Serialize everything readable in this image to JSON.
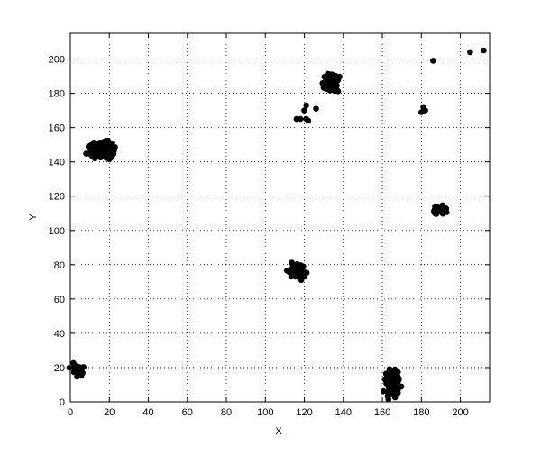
{
  "chart_data": {
    "type": "scatter",
    "title": "",
    "xlabel": "X",
    "ylabel": "Y",
    "xlim": [
      0,
      215
    ],
    "ylim": [
      0,
      215
    ],
    "xticks": [
      0,
      20,
      40,
      60,
      80,
      100,
      120,
      140,
      160,
      180,
      200
    ],
    "yticks": [
      0,
      20,
      40,
      60,
      80,
      100,
      120,
      140,
      160,
      180,
      200
    ],
    "grid": true,
    "marker_color": "#000000",
    "clusters": [
      {
        "center": [
          4,
          18
        ],
        "spread": [
          2.5,
          3
        ],
        "count": 35
      },
      {
        "center": [
          16,
          147
        ],
        "spread": [
          4.5,
          3.2
        ],
        "count": 150
      },
      {
        "center": [
          117,
          76
        ],
        "spread": [
          3.5,
          3
        ],
        "count": 45
      },
      {
        "center": [
          133,
          186
        ],
        "spread": [
          3,
          3.5
        ],
        "count": 90
      },
      {
        "center": [
          165,
          11
        ],
        "spread": [
          2.8,
          6
        ],
        "count": 110
      },
      {
        "center": [
          189,
          112
        ],
        "spread": [
          2.5,
          2
        ],
        "count": 45
      }
    ],
    "points": [
      {
        "x": 116,
        "y": 165
      },
      {
        "x": 118,
        "y": 165
      },
      {
        "x": 120,
        "y": 170
      },
      {
        "x": 121,
        "y": 173
      },
      {
        "x": 121,
        "y": 165
      },
      {
        "x": 122,
        "y": 164
      },
      {
        "x": 126,
        "y": 171
      },
      {
        "x": 180,
        "y": 169
      },
      {
        "x": 181,
        "y": 172
      },
      {
        "x": 182,
        "y": 170
      },
      {
        "x": 186,
        "y": 199
      },
      {
        "x": 205,
        "y": 204
      },
      {
        "x": 212,
        "y": 205
      }
    ]
  }
}
